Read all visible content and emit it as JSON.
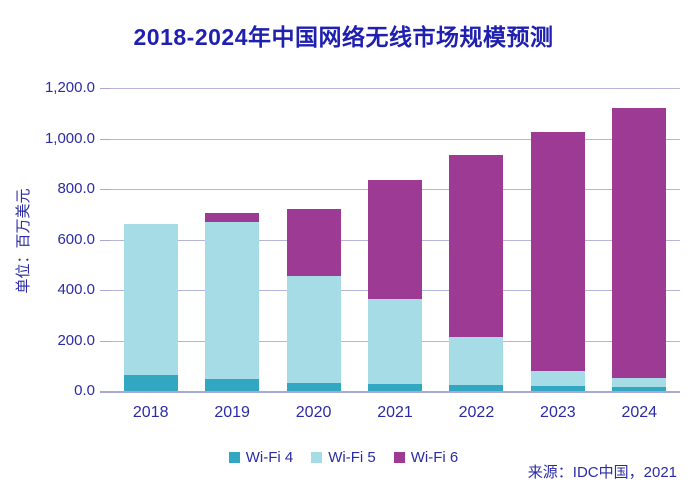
{
  "title": "2018-2024年中国网络无线市场规模预测",
  "y_axis": {
    "label": "单位：百万美元",
    "ticks": [
      "1,200.0",
      "1,000.0",
      "800.0",
      "600.0",
      "400.0",
      "200.0",
      "0.0"
    ],
    "max": 1200,
    "min": 0
  },
  "x_axis": {
    "labels": [
      "2018",
      "2019",
      "2020",
      "2021",
      "2022",
      "2023",
      "2024"
    ]
  },
  "legend": {
    "items": [
      {
        "label": "Wi-Fi 4",
        "color": "#31a7c2"
      },
      {
        "label": "Wi-Fi 5",
        "color": "#a6dce6"
      },
      {
        "label": "Wi-Fi 6",
        "color": "#9d3a93"
      }
    ]
  },
  "source": "来源：IDC中国，2021",
  "colors": {
    "title_text": "#1f1fb0",
    "axis_text": "#2b2ba6",
    "gridline": "#b5b5dc",
    "axis_line": "#a8a8d4",
    "wifi4": "#31a7c2",
    "wifi5": "#a6dce6",
    "wifi6": "#9d3a93"
  },
  "chart_data": {
    "type": "bar",
    "stacked": true,
    "title": "2018-2024年中国网络无线市场规模预测",
    "ylabel": "单位：百万美元",
    "ylim": [
      0,
      1200
    ],
    "ytick_step": 200,
    "grid": true,
    "legend_position": "bottom",
    "categories": [
      "2018",
      "2019",
      "2020",
      "2021",
      "2022",
      "2023",
      "2024"
    ],
    "series": [
      {
        "name": "Wi-Fi 4",
        "color": "#31a7c2",
        "values": [
          65,
          48,
          30,
          28,
          25,
          20,
          15
        ]
      },
      {
        "name": "Wi-Fi 5",
        "color": "#a6dce6",
        "values": [
          595,
          622,
          425,
          338,
          190,
          60,
          35
        ]
      },
      {
        "name": "Wi-Fi 6",
        "color": "#9d3a93",
        "values": [
          0,
          35,
          265,
          470,
          720,
          945,
          1070
        ]
      }
    ],
    "totals": [
      660,
      705,
      720,
      836,
      935,
      1025,
      1120
    ]
  }
}
